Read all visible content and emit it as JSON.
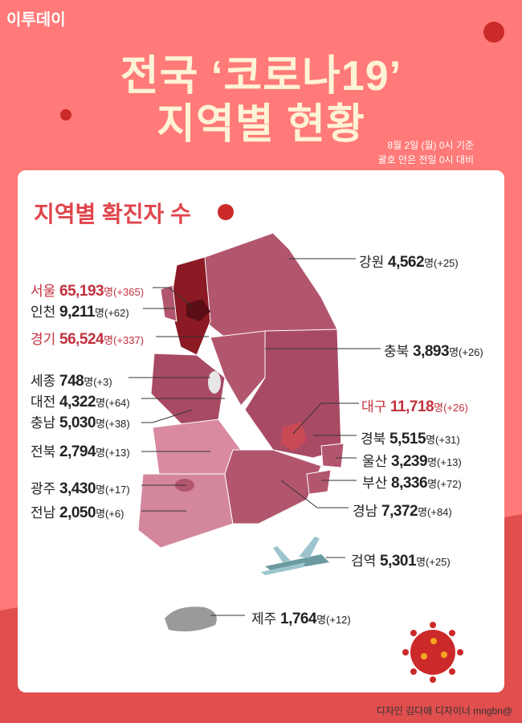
{
  "brand": "이투데이",
  "title_line1": "전국 ‘코로나19’",
  "title_line2": "지역별 현황",
  "note_line1": "8월 2일 (월) 0시 기준",
  "note_line2": "괄호 안은 전일 0시 대비",
  "section_title": "지역별 확진자 수",
  "unit": "명",
  "regions": [
    {
      "name": "서울",
      "count": "65,193",
      "delta": "(+365)",
      "highlight": true
    },
    {
      "name": "인천",
      "count": "9,211",
      "delta": "(+62)",
      "highlight": false
    },
    {
      "name": "경기",
      "count": "56,524",
      "delta": "(+337)",
      "highlight": true
    },
    {
      "name": "세종",
      "count": "748",
      "delta": "(+3)",
      "highlight": false
    },
    {
      "name": "대전",
      "count": "4,322",
      "delta": "(+64)",
      "highlight": false
    },
    {
      "name": "충남",
      "count": "5,030",
      "delta": "(+38)",
      "highlight": false
    },
    {
      "name": "전북",
      "count": "2,794",
      "delta": "(+13)",
      "highlight": false
    },
    {
      "name": "광주",
      "count": "3,430",
      "delta": "(+17)",
      "highlight": false
    },
    {
      "name": "전남",
      "count": "2,050",
      "delta": "(+6)",
      "highlight": false
    },
    {
      "name": "강원",
      "count": "4,562",
      "delta": "(+25)",
      "highlight": false
    },
    {
      "name": "충북",
      "count": "3,893",
      "delta": "(+26)",
      "highlight": false
    },
    {
      "name": "대구",
      "count": "11,718",
      "delta": "(+26)",
      "highlight": true
    },
    {
      "name": "경북",
      "count": "5,515",
      "delta": "(+31)",
      "highlight": false
    },
    {
      "name": "울산",
      "count": "3,239",
      "delta": "(+13)",
      "highlight": false
    },
    {
      "name": "부산",
      "count": "8,336",
      "delta": "(+72)",
      "highlight": false
    },
    {
      "name": "경남",
      "count": "7,372",
      "delta": "(+84)",
      "highlight": false
    },
    {
      "name": "검역",
      "count": "5,301",
      "delta": "(+25)",
      "highlight": false
    },
    {
      "name": "제주",
      "count": "1,764",
      "delta": "(+12)",
      "highlight": false
    }
  ],
  "credit": "디자인 김다애 디자이너 mngbn@",
  "colors": {
    "background": "#ff7a78",
    "band": "#e04e4e",
    "title": "#fff3d6",
    "accent": "#c0303c",
    "virus": "#cc2a2a"
  }
}
